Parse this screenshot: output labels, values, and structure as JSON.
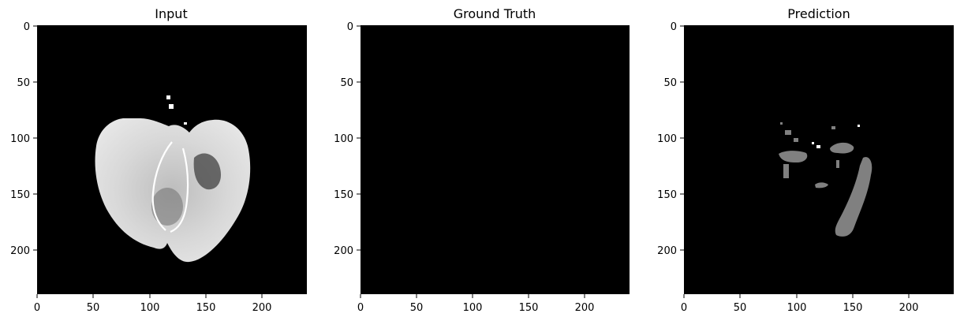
{
  "figure": {
    "panels": [
      {
        "id": "input",
        "title": "Input",
        "image_size": 240,
        "x_ticks": [
          0,
          50,
          100,
          150,
          200
        ],
        "y_ticks": [
          0,
          50,
          100,
          150,
          200
        ],
        "content": "grayscale brain MRI axial slice"
      },
      {
        "id": "ground_truth",
        "title": "Ground Truth",
        "image_size": 240,
        "x_ticks": [
          0,
          50,
          100,
          150,
          200
        ],
        "y_ticks": [
          0,
          50,
          100,
          150,
          200
        ],
        "content": "empty mask (all black)"
      },
      {
        "id": "prediction",
        "title": "Prediction",
        "image_size": 240,
        "x_ticks": [
          0,
          50,
          100,
          150,
          200
        ],
        "y_ticks": [
          0,
          50,
          100,
          150,
          200
        ],
        "content": "gray predicted segmentation regions"
      }
    ]
  },
  "colors": {
    "background": "#000000",
    "prediction_mask": "#808080",
    "brain_tissue": "#cfcfcf"
  }
}
